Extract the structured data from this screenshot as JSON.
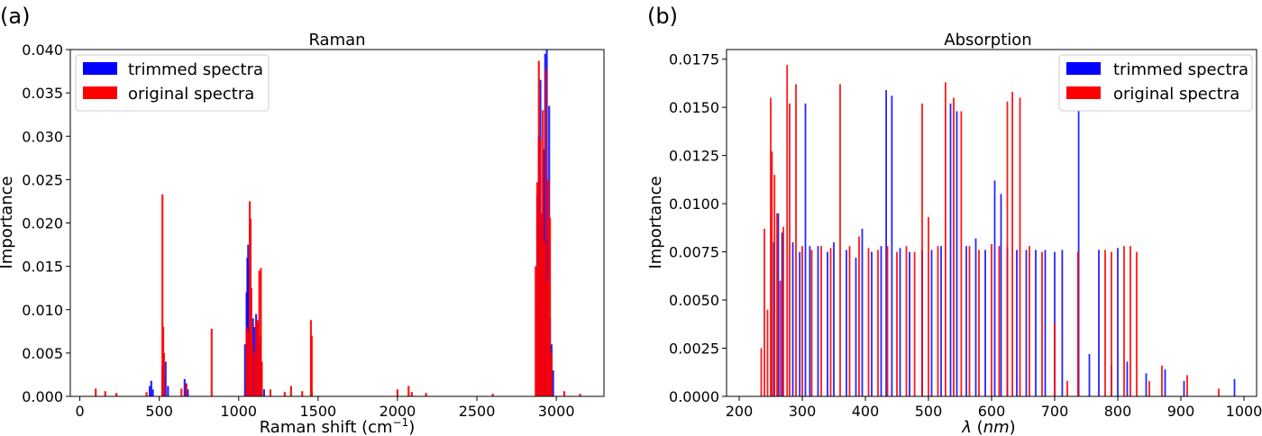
{
  "panels": [
    {
      "label": "(a)"
    },
    {
      "label": "(b)"
    }
  ],
  "chart_data": [
    {
      "type": "bar",
      "title": "Raman",
      "xlabel": "Raman shift (cm",
      "xlabel_sup": "−1",
      "xlabel_suffix": ")",
      "ylabel": "Importance",
      "xlim": [
        -60,
        3300
      ],
      "ylim": [
        0,
        0.04
      ],
      "xticks": [
        0,
        500,
        1000,
        1500,
        2000,
        2500,
        3000
      ],
      "yticks": [
        0.0,
        0.005,
        0.01,
        0.015,
        0.02,
        0.025,
        0.03,
        0.035,
        0.04
      ],
      "ytick_labels": [
        "0.000",
        "0.005",
        "0.010",
        "0.015",
        "0.020",
        "0.025",
        "0.030",
        "0.035",
        "0.040"
      ],
      "legend_position": "top-left",
      "series": [
        {
          "name": "trimmed spectra",
          "color": "#0000ff",
          "x": [
            440,
            450,
            460,
            520,
            530,
            540,
            555,
            660,
            670,
            680,
            1040,
            1050,
            1055,
            1060,
            1065,
            1070,
            1080,
            1090,
            1100,
            1110,
            1120,
            1130,
            1135,
            1145,
            1160,
            1460,
            2880,
            2890,
            2900,
            2910,
            2920,
            2930,
            2940,
            2945,
            2955,
            2960,
            2970,
            2980
          ],
          "values": [
            0.0012,
            0.0018,
            0.0008,
            0.0035,
            0.0025,
            0.004,
            0.0012,
            0.002,
            0.0015,
            0.0008,
            0.006,
            0.012,
            0.016,
            0.0175,
            0.015,
            0.008,
            0.005,
            0.009,
            0.008,
            0.0095,
            0.0085,
            0.006,
            0.007,
            0.004,
            0.0008,
            0.0005,
            0.0233,
            0.03,
            0.0365,
            0.021,
            0.0285,
            0.0395,
            0.04,
            0.018,
            0.0335,
            0.009,
            0.006,
            0.003
          ]
        },
        {
          "name": "original spectra",
          "color": "#ff0000",
          "x": [
            100,
            160,
            230,
            420,
            520,
            525,
            530,
            640,
            670,
            830,
            1050,
            1060,
            1070,
            1075,
            1080,
            1085,
            1100,
            1110,
            1120,
            1130,
            1140,
            1145,
            1200,
            1290,
            1330,
            1400,
            1455,
            1460,
            2000,
            2070,
            2090,
            2180,
            2600,
            2870,
            2880,
            2890,
            2900,
            2910,
            2915,
            2925,
            2935,
            2945,
            2950,
            2960,
            2970,
            3050,
            3150
          ],
          "values": [
            0.0009,
            0.0006,
            0.0004,
            0.0005,
            0.0233,
            0.008,
            0.005,
            0.0009,
            0.0015,
            0.0078,
            0.008,
            0.0075,
            0.0225,
            0.0205,
            0.0125,
            0.006,
            0.005,
            0.0085,
            0.0088,
            0.0145,
            0.0148,
            0.004,
            0.0008,
            0.0005,
            0.0012,
            0.0006,
            0.0088,
            0.007,
            0.0008,
            0.0012,
            0.0005,
            0.0004,
            0.0003,
            0.015,
            0.0247,
            0.0387,
            0.0296,
            0.0211,
            0.033,
            0.0178,
            0.0378,
            0.0132,
            0.025,
            0.0206,
            0.005,
            0.0006,
            0.0003
          ]
        }
      ]
    },
    {
      "type": "bar",
      "title": "Absorption",
      "xlabel": "λ (nm)",
      "xlabel_lambda": "λ",
      "xlabel_unit": "nm",
      "ylabel": "Importance",
      "xlim": [
        180,
        1020
      ],
      "ylim": [
        0,
        0.018
      ],
      "xticks": [
        200,
        300,
        400,
        500,
        600,
        700,
        800,
        900,
        1000
      ],
      "yticks": [
        0.0,
        0.0025,
        0.005,
        0.0075,
        0.01,
        0.0125,
        0.015,
        0.0175
      ],
      "ytick_labels": [
        "0.0000",
        "0.0025",
        "0.0050",
        "0.0075",
        "0.0100",
        "0.0125",
        "0.0150",
        "0.0175"
      ],
      "legend_position": "top-right",
      "series": [
        {
          "name": "trimmed spectra",
          "color": "#0000ff",
          "x": [
            255,
            262,
            268,
            285,
            296,
            305,
            312,
            325,
            340,
            350,
            370,
            385,
            395,
            410,
            425,
            433,
            442,
            455,
            470,
            490,
            505,
            520,
            535,
            545,
            560,
            575,
            590,
            605,
            615,
            625,
            640,
            655,
            670,
            685,
            700,
            712,
            738,
            755,
            770,
            790,
            800,
            815,
            845,
            875,
            905,
            985
          ],
          "values": [
            0.008,
            0.0095,
            0.0085,
            0.008,
            0.0075,
            0.0152,
            0.0078,
            0.0078,
            0.0075,
            0.008,
            0.0076,
            0.0072,
            0.0087,
            0.0075,
            0.0078,
            0.0159,
            0.0156,
            0.0077,
            0.0075,
            0.0076,
            0.0076,
            0.0078,
            0.0152,
            0.0148,
            0.0078,
            0.0082,
            0.0076,
            0.0112,
            0.0105,
            0.0077,
            0.0076,
            0.0076,
            0.0076,
            0.0076,
            0.0075,
            0.0076,
            0.0153,
            0.0022,
            0.0076,
            0.0016,
            0.0077,
            0.0018,
            0.0012,
            0.0014,
            0.0008,
            0.0009
          ]
        },
        {
          "name": "original spectra",
          "color": "#ff0000",
          "x": [
            235,
            240,
            245,
            250,
            252,
            256,
            260,
            265,
            270,
            276,
            280,
            290,
            300,
            315,
            330,
            345,
            360,
            375,
            390,
            405,
            420,
            435,
            450,
            465,
            478,
            490,
            500,
            515,
            527,
            540,
            552,
            565,
            580,
            600,
            612,
            625,
            633,
            645,
            660,
            680,
            700,
            720,
            737,
            780,
            790,
            810,
            820,
            830,
            850,
            870,
            910,
            960
          ],
          "values": [
            0.0025,
            0.0087,
            0.0045,
            0.0155,
            0.0127,
            0.0115,
            0.0095,
            0.006,
            0.0088,
            0.0172,
            0.0152,
            0.0162,
            0.0078,
            0.0076,
            0.0078,
            0.0077,
            0.0162,
            0.0078,
            0.0083,
            0.0077,
            0.0076,
            0.0078,
            0.0075,
            0.0078,
            0.0075,
            0.0152,
            0.0093,
            0.0078,
            0.0163,
            0.0155,
            0.0148,
            0.0078,
            0.0076,
            0.0079,
            0.0078,
            0.0153,
            0.0158,
            0.0155,
            0.0078,
            0.0075,
            0.0038,
            0.0008,
            0.0075,
            0.0076,
            0.0075,
            0.0078,
            0.0078,
            0.0075,
            0.0008,
            0.0016,
            0.0011,
            0.0004
          ]
        }
      ]
    }
  ]
}
